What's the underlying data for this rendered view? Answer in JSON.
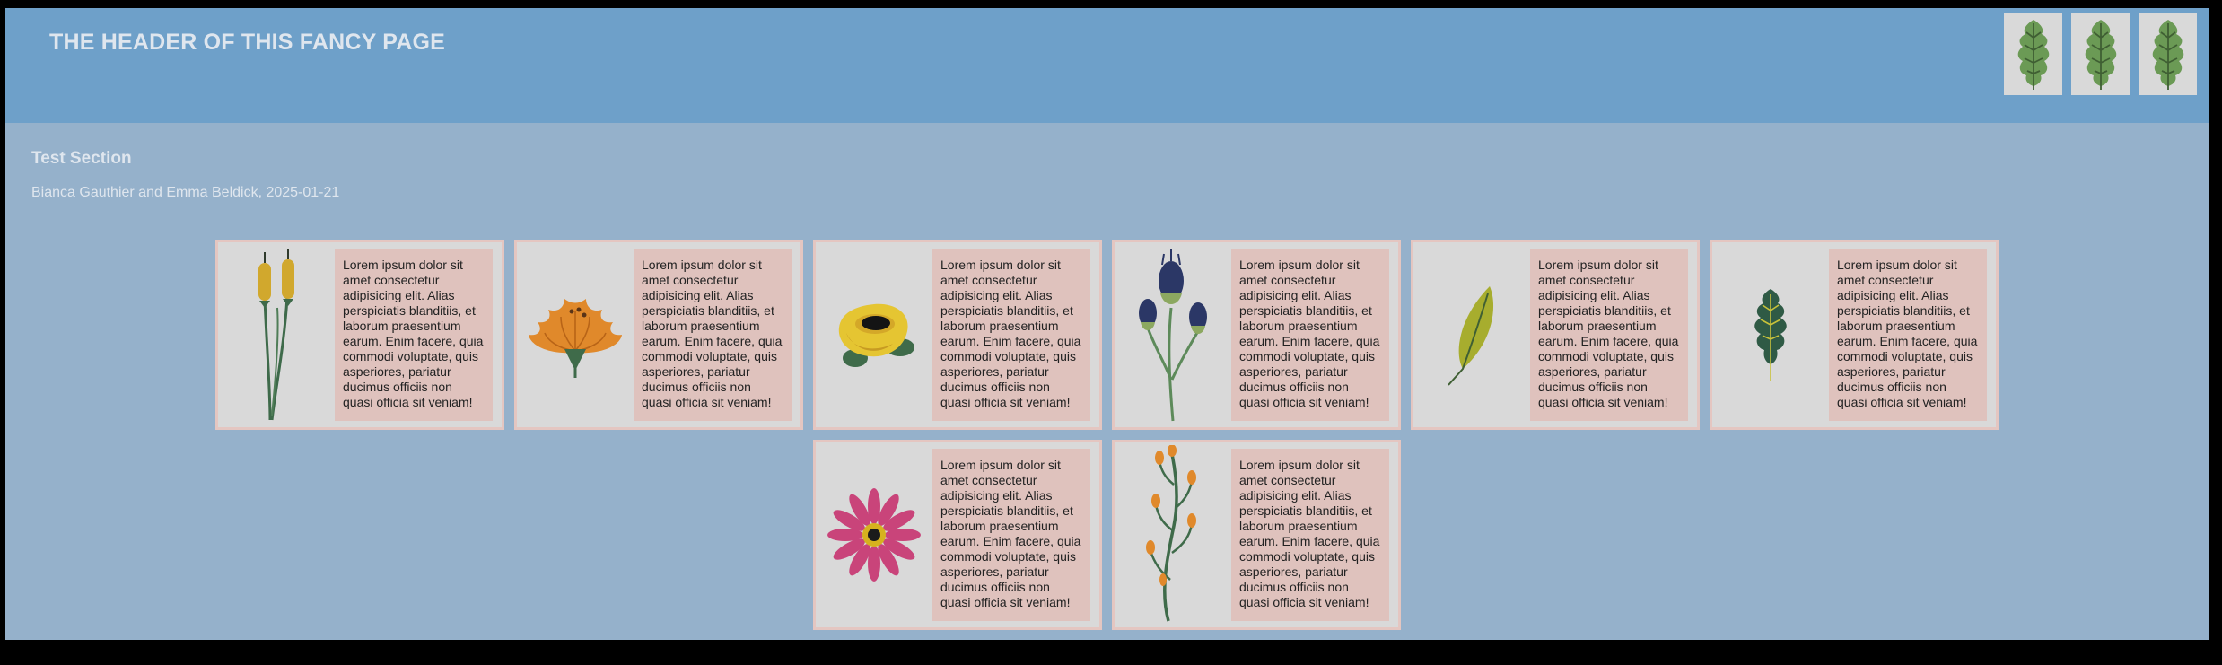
{
  "header": {
    "title": "THE HEADER OF THIS FANCY PAGE",
    "icons": [
      "leaf-icon",
      "leaf-icon",
      "leaf-icon"
    ]
  },
  "section": {
    "title": "Test Section",
    "meta": "Bianca Gauthier and Emma Beldick, 2025-01-21"
  },
  "cards": [
    {
      "icon": "cattail-icon",
      "text": "Lorem ipsum dolor sit amet consectetur adipisicing elit. Alias perspiciatis blanditiis, et laborum praesentium earum. Enim facere, quia commodi voluptate, quis asperiores, pariatur ducimus officiis non quasi officia sit veniam!"
    },
    {
      "icon": "orange-flower-icon",
      "text": "Lorem ipsum dolor sit amet consectetur adipisicing elit. Alias perspiciatis blanditiis, et laborum praesentium earum. Enim facere, quia commodi voluptate, quis asperiores, pariatur ducimus officiis non quasi officia sit veniam!"
    },
    {
      "icon": "yellow-flower-icon",
      "text": "Lorem ipsum dolor sit amet consectetur adipisicing elit. Alias perspiciatis blanditiis, et laborum praesentium earum. Enim facere, quia commodi voluptate, quis asperiores, pariatur ducimus officiis non quasi officia sit veniam!"
    },
    {
      "icon": "thistle-icon",
      "text": "Lorem ipsum dolor sit amet consectetur adipisicing elit. Alias perspiciatis blanditiis, et laborum praesentium earum. Enim facere, quia commodi voluptate, quis asperiores, pariatur ducimus officiis non quasi officia sit veniam!"
    },
    {
      "icon": "green-leaf-icon",
      "text": "Lorem ipsum dolor sit amet consectetur adipisicing elit. Alias perspiciatis blanditiis, et laborum praesentium earum. Enim facere, quia commodi voluptate, quis asperiores, pariatur ducimus officiis non quasi officia sit veniam!"
    },
    {
      "icon": "oak-leaf-icon",
      "text": "Lorem ipsum dolor sit amet consectetur adipisicing elit. Alias perspiciatis blanditiis, et laborum praesentium earum. Enim facere, quia commodi voluptate, quis asperiores, pariatur ducimus officiis non quasi officia sit veniam!"
    },
    {
      "icon": "pink-daisy-icon",
      "text": "Lorem ipsum dolor sit amet consectetur adipisicing elit. Alias perspiciatis blanditiis, et laborum praesentium earum. Enim facere, quia commodi voluptate, quis asperiores, pariatur ducimus officiis non quasi officia sit veniam!"
    },
    {
      "icon": "orange-sprig-icon",
      "text": "Lorem ipsum dolor sit amet consectetur adipisicing elit. Alias perspiciatis blanditiis, et laborum praesentium earum. Enim facere, quia commodi voluptate, quis asperiores, pariatur ducimus officiis non quasi officia sit veniam!"
    }
  ],
  "colors": {
    "header_bg": "#6ea0c9",
    "page_bg": "#95b1cb",
    "card_bg": "#d9d9d9",
    "card_border": "#e4c6c1",
    "text_panel_bg": "#dfc2bd"
  }
}
